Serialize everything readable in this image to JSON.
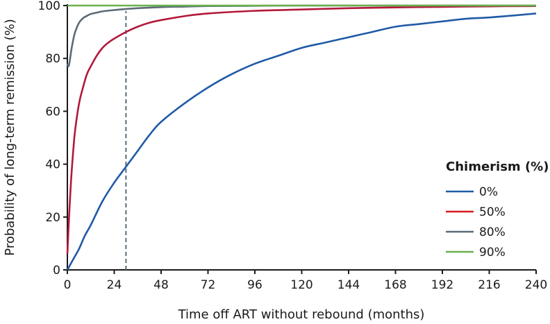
{
  "chart_data": {
    "type": "line",
    "title": "",
    "xlabel": "Time off ART without rebound (months)",
    "ylabel": "Probability of long-term remission (%)",
    "xlim": [
      0,
      240
    ],
    "ylim": [
      0,
      100
    ],
    "xticks": [
      "0",
      "24",
      "48",
      "72",
      "96",
      "120",
      "144",
      "168",
      "192",
      "216",
      "240"
    ],
    "yticks": [
      "0",
      "20",
      "40",
      "60",
      "80",
      "100"
    ],
    "grid": false,
    "legend": {
      "title": "Chimerism (%)",
      "position": "right"
    },
    "reference_line": {
      "x": 30,
      "style": "dashed",
      "color": "#5a6b78"
    },
    "series": [
      {
        "name": "0%",
        "color": "#1f5aa6",
        "x": [
          0,
          3,
          6,
          9,
          12,
          18,
          24,
          30,
          36,
          42,
          48,
          60,
          72,
          84,
          96,
          108,
          120,
          132,
          144,
          156,
          168,
          180,
          192,
          204,
          216,
          228,
          240
        ],
        "y": [
          0,
          4,
          8,
          13,
          17,
          26,
          33,
          39,
          45,
          51,
          56,
          63,
          69,
          74,
          78,
          81,
          84,
          86,
          88,
          90,
          92,
          93,
          94,
          95,
          95.5,
          96.2,
          97
        ]
      },
      {
        "name": "50%",
        "color": "#d7191c",
        "stroke": "#b2183a",
        "x": [
          0,
          1,
          2,
          3,
          4,
          6,
          8,
          10,
          12,
          15,
          18,
          21,
          24,
          30,
          36,
          42,
          48,
          60,
          72,
          96,
          120,
          144,
          168,
          192,
          216,
          240
        ],
        "y": [
          6,
          22,
          35,
          45,
          53,
          63,
          69,
          74,
          77,
          81,
          84,
          86,
          87.5,
          90,
          92,
          93.5,
          94.5,
          96,
          97,
          98,
          98.5,
          99,
          99.3,
          99.5,
          99.7,
          99.8
        ]
      },
      {
        "name": "80%",
        "color": "#5a6b78",
        "x": [
          0,
          0.5,
          1,
          2,
          3,
          4,
          6,
          8,
          10,
          12,
          15,
          18,
          24,
          30,
          36,
          48,
          60,
          72,
          96,
          120,
          240
        ],
        "y": [
          78,
          77,
          78,
          83,
          87,
          90,
          93.5,
          95.2,
          96.1,
          96.8,
          97.3,
          97.8,
          98.3,
          98.7,
          99,
          99.4,
          99.6,
          99.8,
          99.9,
          100,
          100
        ]
      },
      {
        "name": "90%",
        "color": "#6ab04c",
        "x": [
          0,
          240
        ],
        "y": [
          100,
          100
        ]
      }
    ]
  }
}
